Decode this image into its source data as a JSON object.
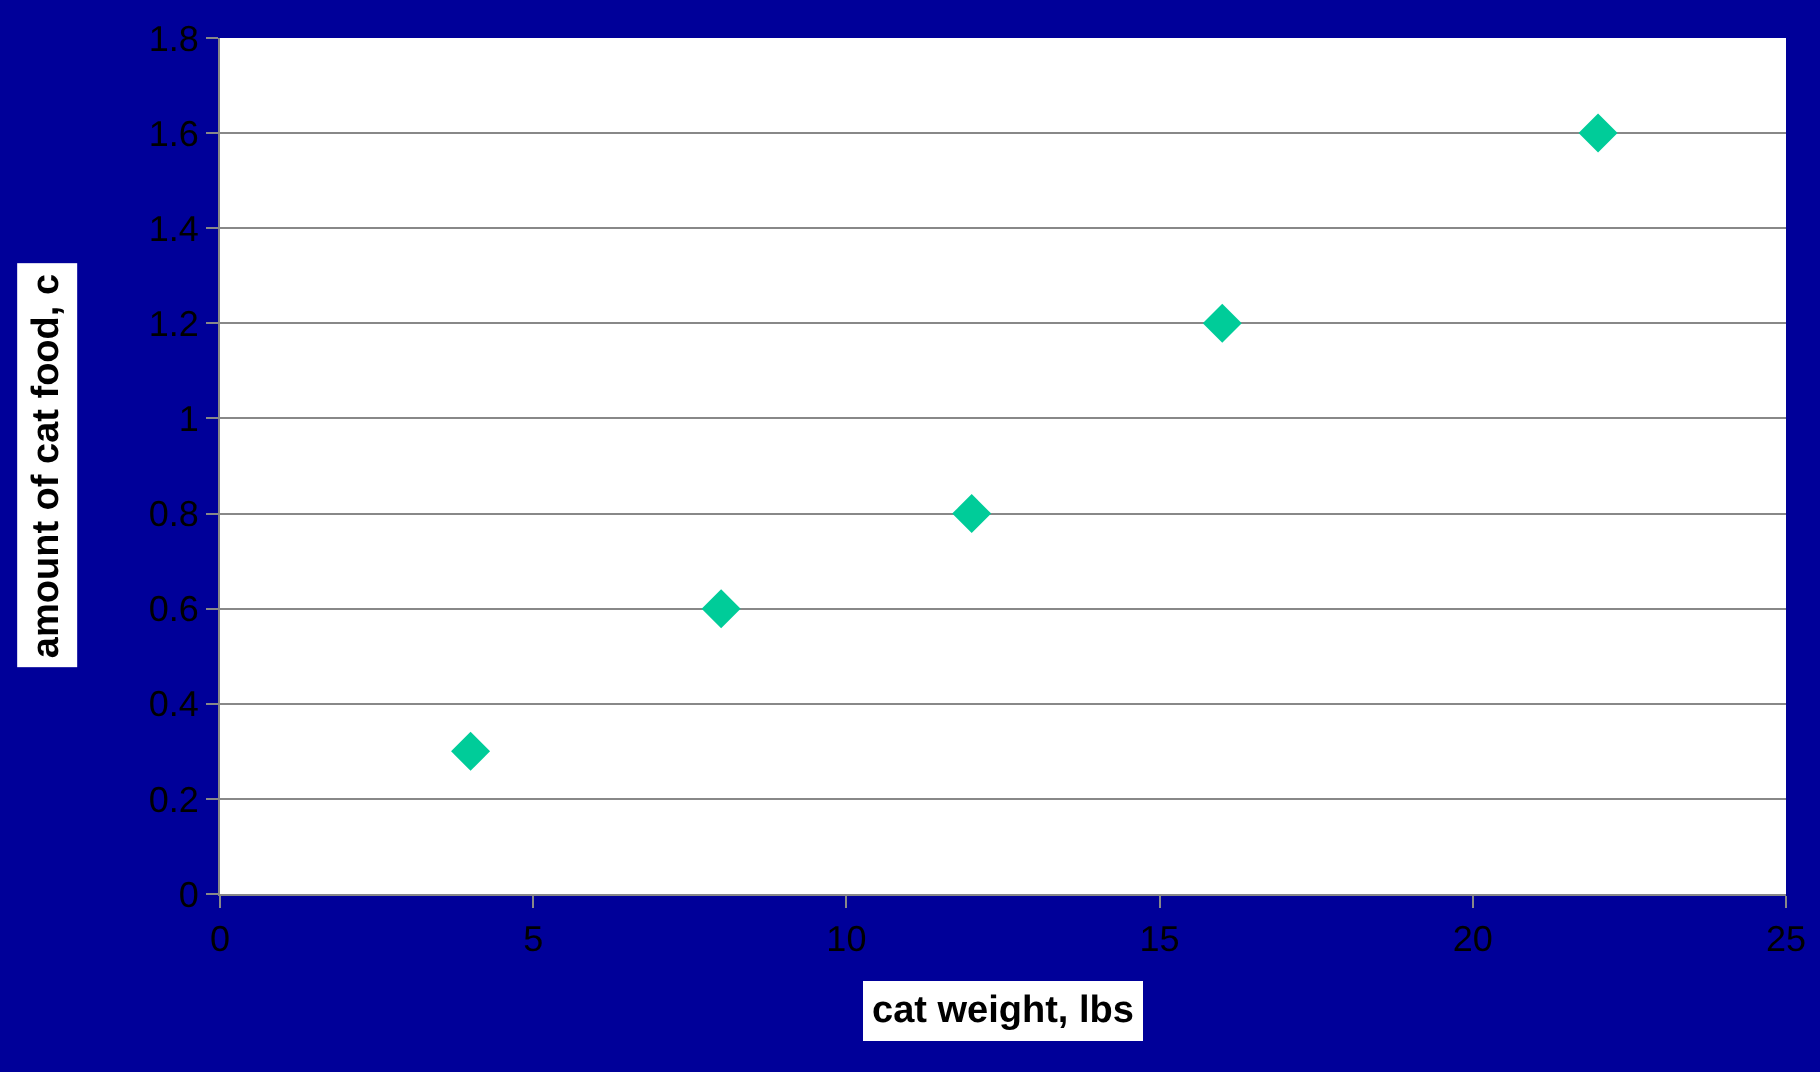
{
  "chart_data": {
    "type": "scatter",
    "xlabel": "cat weight, lbs",
    "ylabel": "amount of cat food, c",
    "x": [
      4,
      8,
      12,
      16,
      22
    ],
    "series": [
      {
        "color": "#00cc99",
        "values": [
          0.3,
          0.6,
          0.8,
          1.2,
          1.6
        ]
      }
    ],
    "xlim": [
      0,
      25
    ],
    "xticks": [
      0,
      5,
      10,
      15,
      20,
      25
    ],
    "ylim": [
      0,
      1.8
    ],
    "yticks": [
      0,
      0.2,
      0.4,
      0.6,
      0.8,
      1,
      1.2,
      1.4,
      1.6,
      1.8
    ],
    "grid": "y",
    "marker": "diamond"
  }
}
